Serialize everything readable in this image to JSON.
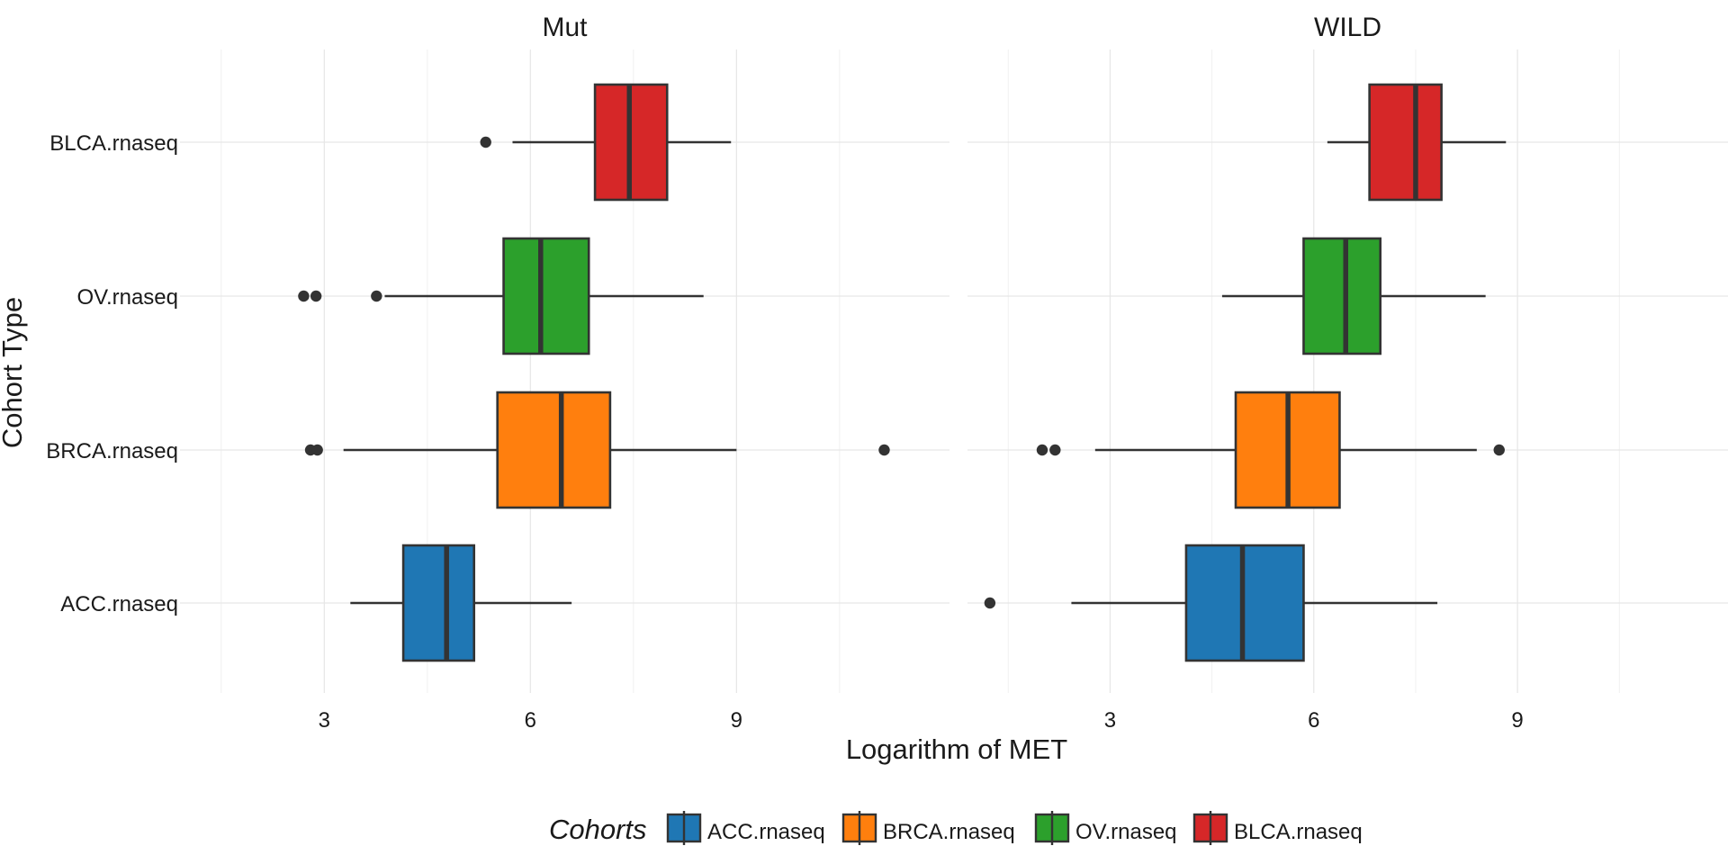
{
  "chart_data": {
    "type": "boxplot",
    "title": "",
    "xlabel": "Logarithm of MET",
    "ylabel": "Cohort Type",
    "xlim": [
      0.9,
      12.1
    ],
    "xticks": [
      3,
      6,
      9
    ],
    "categories": [
      "ACC.rnaseq",
      "BRCA.rnaseq",
      "OV.rnaseq",
      "BLCA.rnaseq"
    ],
    "colors": {
      "ACC.rnaseq": "#1f77b4",
      "BRCA.rnaseq": "#ff7f0e",
      "OV.rnaseq": "#2ca02c",
      "BLCA.rnaseq": "#d62728"
    },
    "legend": {
      "title": "Cohorts",
      "position": "bottom",
      "items": [
        "ACC.rnaseq",
        "BRCA.rnaseq",
        "OV.rnaseq",
        "BLCA.rnaseq"
      ]
    },
    "grid": true,
    "panels": [
      {
        "name": "Mut",
        "boxes": [
          {
            "category": "ACC.rnaseq",
            "whisker_low": 3.38,
            "q1": 4.15,
            "median": 4.78,
            "q3": 5.18,
            "whisker_high": 6.6,
            "outliers": []
          },
          {
            "category": "BRCA.rnaseq",
            "whisker_low": 3.28,
            "q1": 5.52,
            "median": 6.45,
            "q3": 7.16,
            "whisker_high": 9.0,
            "outliers": [
              2.8,
              2.9,
              11.15
            ]
          },
          {
            "category": "OV.rnaseq",
            "whisker_low": 3.88,
            "q1": 5.61,
            "median": 6.15,
            "q3": 6.85,
            "whisker_high": 8.52,
            "outliers": [
              2.7,
              2.88,
              3.76
            ]
          },
          {
            "category": "BLCA.rnaseq",
            "whisker_low": 5.74,
            "q1": 6.94,
            "median": 7.44,
            "q3": 7.99,
            "whisker_high": 8.92,
            "outliers": [
              5.35
            ]
          }
        ]
      },
      {
        "name": "WILD",
        "boxes": [
          {
            "category": "ACC.rnaseq",
            "whisker_low": 2.43,
            "q1": 4.12,
            "median": 4.95,
            "q3": 5.85,
            "whisker_high": 7.82,
            "outliers": [
              1.23
            ]
          },
          {
            "category": "BRCA.rnaseq",
            "whisker_low": 2.78,
            "q1": 4.85,
            "median": 5.62,
            "q3": 6.38,
            "whisker_high": 8.4,
            "outliers": [
              2.0,
              2.19,
              8.73
            ]
          },
          {
            "category": "OV.rnaseq",
            "whisker_low": 4.65,
            "q1": 5.85,
            "median": 6.47,
            "q3": 6.98,
            "whisker_high": 8.53,
            "outliers": []
          },
          {
            "category": "BLCA.rnaseq",
            "whisker_low": 6.2,
            "q1": 6.82,
            "median": 7.5,
            "q3": 7.88,
            "whisker_high": 8.83,
            "outliers": []
          }
        ]
      }
    ]
  }
}
